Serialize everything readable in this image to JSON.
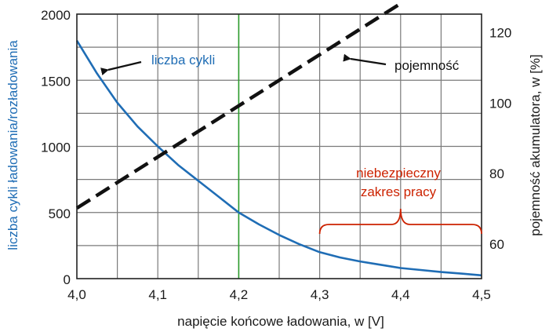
{
  "colors": {
    "cycles": "#1f6db5",
    "capacity": "#111111",
    "highlight": "#2a9a2a",
    "danger": "#cc2200",
    "grid": "#7a7a7a",
    "frame": "#222222"
  },
  "chart_data": {
    "type": "line",
    "xlabel": "napięcie końcowe ładowania, w [V]",
    "ylabel_left": "liczba cykli ładowania/rozładowania",
    "ylabel_right": "pojemność akumulatora, w [%]",
    "xlim": [
      4.0,
      4.5
    ],
    "ylim_left": [
      0,
      2000
    ],
    "ylim_right": [
      50,
      125
    ],
    "x_ticks": [
      4.0,
      4.1,
      4.2,
      4.3,
      4.4,
      4.5
    ],
    "x_tick_labels": [
      "4,0",
      "4,1",
      "4,2",
      "4,3",
      "4,4",
      "4,5"
    ],
    "y_left_ticks": [
      0,
      500,
      1000,
      1500,
      2000
    ],
    "y_left_tick_labels": [
      "0",
      "500",
      "1000",
      "1500",
      "2000"
    ],
    "y_right_ticks": [
      60,
      80,
      100,
      120
    ],
    "y_right_tick_labels": [
      "60",
      "80",
      "100",
      "120"
    ],
    "grid": true,
    "highlighted_x": 4.2,
    "series": [
      {
        "name": "liczba cykli",
        "axis": "left",
        "style": "solid",
        "x": [
          4.0,
          4.025,
          4.05,
          4.075,
          4.1,
          4.125,
          4.15,
          4.175,
          4.2,
          4.225,
          4.25,
          4.275,
          4.3,
          4.325,
          4.35,
          4.375,
          4.4,
          4.425,
          4.45,
          4.475,
          4.5
        ],
        "y": [
          1800,
          1550,
          1330,
          1150,
          1000,
          860,
          740,
          620,
          500,
          410,
          330,
          260,
          200,
          160,
          130,
          105,
          80,
          65,
          50,
          38,
          25
        ]
      },
      {
        "name": "pojemność",
        "axis": "right",
        "style": "dashed",
        "x": [
          4.0,
          4.4
        ],
        "y": [
          70,
          128
        ]
      }
    ],
    "annotations": {
      "cycles_label": "liczba cykli",
      "capacity_label": "pojemność",
      "danger_line1": "niebezpieczny",
      "danger_line2": "zakres pracy",
      "danger_range": [
        4.3,
        4.5
      ]
    }
  }
}
